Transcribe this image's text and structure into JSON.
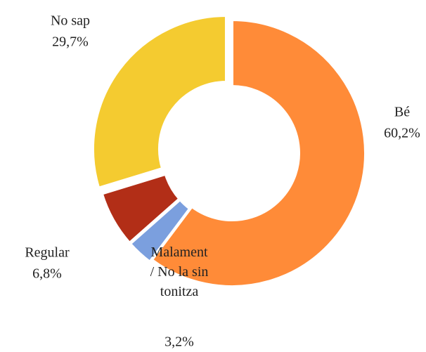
{
  "chart_data": {
    "type": "donut",
    "categories": [
      "Bé",
      "Malament / No la sintonitza",
      "Regular",
      "No sap"
    ],
    "values": [
      60.2,
      3.2,
      6.8,
      29.7
    ],
    "value_labels": [
      "60,2%",
      "3,2%",
      "6,8%",
      "29,7%"
    ],
    "colors": [
      "#ff8b38",
      "#7b9fde",
      "#b22e17",
      "#f4cb30"
    ]
  }
}
